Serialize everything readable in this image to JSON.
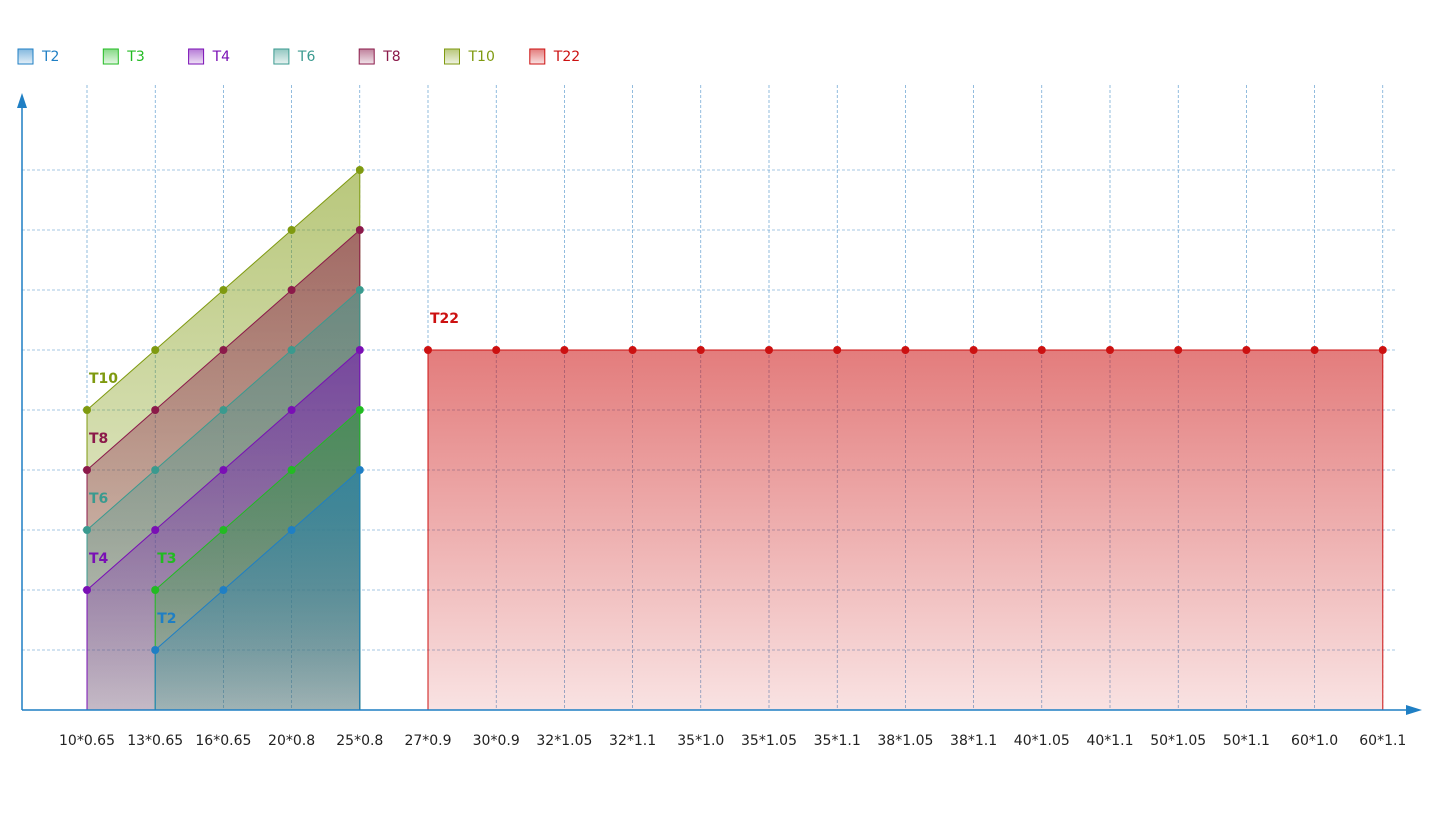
{
  "chart_data": {
    "type": "area",
    "categories": [
      "10*0.65",
      "13*0.65",
      "16*0.65",
      "20*0.8",
      "25*0.8",
      "27*0.9",
      "30*0.9",
      "32*1.05",
      "32*1.1",
      "35*1.0",
      "35*1.05",
      "35*1.1",
      "38*1.05",
      "38*1.1",
      "40*1.05",
      "40*1.1",
      "50*1.05",
      "50*1.1",
      "60*1.0",
      "60*1.1"
    ],
    "series": [
      {
        "name": "T10",
        "color": "#7f9a10",
        "values": [
          5,
          6,
          7,
          8,
          9,
          null,
          null,
          null,
          null,
          null,
          null,
          null,
          null,
          null,
          null,
          null,
          null,
          null,
          null,
          null
        ]
      },
      {
        "name": "T8",
        "color": "#8b1a4a",
        "values": [
          4,
          5,
          6,
          7,
          8,
          null,
          null,
          null,
          null,
          null,
          null,
          null,
          null,
          null,
          null,
          null,
          null,
          null,
          null,
          null
        ]
      },
      {
        "name": "T6",
        "color": "#3a9a8f",
        "values": [
          3,
          4,
          5,
          6,
          7,
          null,
          null,
          null,
          null,
          null,
          null,
          null,
          null,
          null,
          null,
          null,
          null,
          null,
          null,
          null
        ]
      },
      {
        "name": "T4",
        "color": "#7a0fb5",
        "values": [
          2,
          3,
          4,
          5,
          6,
          null,
          null,
          null,
          null,
          null,
          null,
          null,
          null,
          null,
          null,
          null,
          null,
          null,
          null,
          null
        ]
      },
      {
        "name": "T3",
        "color": "#22bb22",
        "values": [
          null,
          2,
          3,
          4,
          5,
          null,
          null,
          null,
          null,
          null,
          null,
          null,
          null,
          null,
          null,
          null,
          null,
          null,
          null,
          null
        ]
      },
      {
        "name": "T2",
        "color": "#1f7fc4",
        "values": [
          null,
          1,
          2,
          3,
          4,
          null,
          null,
          null,
          null,
          null,
          null,
          null,
          null,
          null,
          null,
          null,
          null,
          null,
          null,
          null
        ]
      },
      {
        "name": "T22",
        "color": "#cc1111",
        "values": [
          null,
          null,
          null,
          null,
          null,
          6,
          6,
          6,
          6,
          6,
          6,
          6,
          6,
          6,
          6,
          6,
          6,
          6,
          6,
          6
        ]
      }
    ],
    "legend_order": [
      5,
      4,
      3,
      2,
      1,
      0,
      6
    ],
    "ylim": [
      0,
      10
    ],
    "yticks": [
      1,
      2,
      3,
      4,
      5,
      6,
      7,
      8,
      9
    ],
    "grid": true
  }
}
